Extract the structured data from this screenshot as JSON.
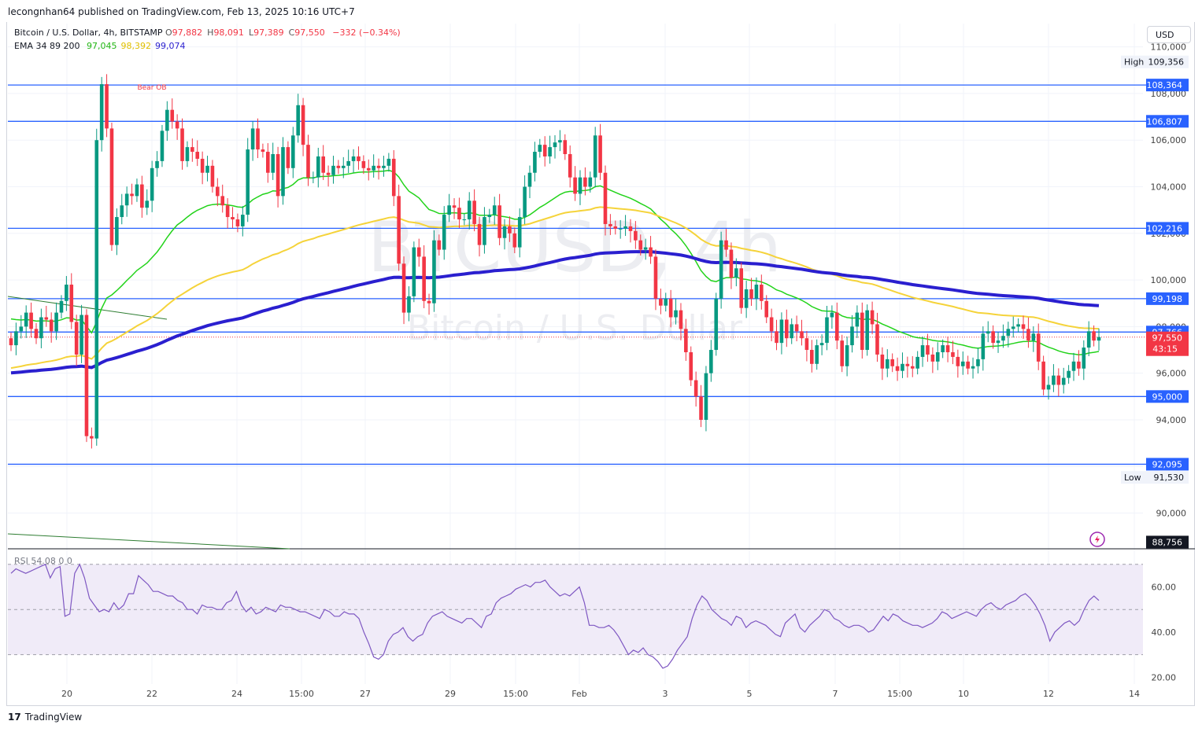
{
  "header": {
    "publisher": "lecongnhan64 published on TradingView.com, Feb 13, 2025 10:16 UTC+7",
    "symbol": "Bitcoin / U.S. Dollar, 4h, BITSTAMP",
    "ohlc": [
      {
        "key": "O",
        "value": "97,882"
      },
      {
        "key": "H",
        "value": "98,091"
      },
      {
        "key": "L",
        "value": "97,389"
      },
      {
        "key": "C",
        "value": "97,550"
      }
    ],
    "change": "−332 (−0.34%)",
    "ema_label": "EMA 34 89 200",
    "ema_values": [
      {
        "value": "97,045",
        "color": "#22b614"
      },
      {
        "value": "98,392",
        "color": "#e0c000"
      },
      {
        "value": "99,074",
        "color": "#2a1fcf"
      }
    ]
  },
  "currency": "USD",
  "watermark": {
    "symbol": "BTCUSD, 4h",
    "name": "Bitcoin / U.S. Dollar"
  },
  "footer": {
    "brand": "TradingView"
  },
  "chart_data": {
    "type": "candlestick",
    "timeframe": "4h",
    "x_ticks": [
      "20",
      "22",
      "24",
      "15:00",
      "27",
      "29",
      "15:00",
      "Feb",
      "3",
      "5",
      "7",
      "15:00",
      "10",
      "12",
      "14"
    ],
    "y_ticks": [
      "110,000",
      "108,000",
      "106,000",
      "104,000",
      "102,000",
      "100,000",
      "98,000",
      "96,000",
      "94,000",
      "92,000",
      "90,000"
    ],
    "y_tick_values": [
      110000,
      108000,
      106000,
      104000,
      102000,
      100000,
      98000,
      96000,
      94000,
      92000,
      90000
    ],
    "ylim": [
      88500,
      111000
    ],
    "horizontal_levels": [
      {
        "value": 108364,
        "label": "108,364"
      },
      {
        "value": 106807,
        "label": "106,807"
      },
      {
        "value": 102216,
        "label": "102,216"
      },
      {
        "value": 99198,
        "label": "99,198"
      },
      {
        "value": 97766,
        "label": "97,766"
      },
      {
        "value": 95000,
        "label": "95,000"
      },
      {
        "value": 92095,
        "label": "92,095"
      },
      {
        "value": 88756,
        "label": "88,756"
      }
    ],
    "high": {
      "label": "High",
      "value": 109356,
      "text": "109,356"
    },
    "low": {
      "label": "Low",
      "value": 91530,
      "text": "91,530"
    },
    "last_price": {
      "value": 97550,
      "text": "97,550",
      "countdown": "43:15"
    },
    "annotation": {
      "text": "Bear OB",
      "value": 108300
    },
    "candle_close_series": [
      97200,
      97800,
      98000,
      98600,
      97900,
      97500,
      98400,
      98300,
      97800,
      98600,
      99100,
      99800,
      98200,
      96800,
      98500,
      93300,
      93200,
      106000,
      108400,
      106500,
      101500,
      102700,
      103200,
      103700,
      103600,
      104100,
      103100,
      103400,
      104800,
      105100,
      106400,
      107300,
      106800,
      106500,
      105100,
      105700,
      105500,
      105200,
      104600,
      104900,
      104000,
      103600,
      103200,
      102700,
      102600,
      102300,
      102800,
      105600,
      106500,
      105600,
      105500,
      104600,
      105400,
      103600,
      105700,
      104800,
      106200,
      107500,
      105800,
      104400,
      104400,
      105300,
      104600,
      104500,
      104900,
      104800,
      104900,
      105100,
      105300,
      105100,
      104800,
      104700,
      104900,
      104800,
      104900,
      105200,
      103600,
      100700,
      98600,
      99300,
      101400,
      101000,
      99100,
      99000,
      101700,
      101300,
      102800,
      103200,
      103100,
      102600,
      102600,
      103400,
      102400,
      101500,
      102700,
      102800,
      103200,
      101800,
      102300,
      102000,
      101400,
      102700,
      104000,
      104600,
      105500,
      105800,
      105300,
      105700,
      105900,
      106000,
      105400,
      104400,
      103700,
      104400,
      104000,
      104400,
      106200,
      104600,
      102400,
      102300,
      102200,
      102200,
      102300,
      102100,
      101700,
      101300,
      101400,
      101000,
      99200,
      98900,
      99200,
      98400,
      98700,
      97900,
      96900,
      95700,
      95000,
      94000,
      96000,
      97000,
      99200,
      101700,
      101300,
      100100,
      100500,
      98800,
      99600,
      99200,
      99800,
      99100,
      98400,
      97800,
      97300,
      98300,
      97500,
      98100,
      97800,
      97500,
      97000,
      96400,
      97200,
      97300,
      98400,
      98600,
      97400,
      96300,
      97200,
      98000,
      98600,
      97000,
      98700,
      98100,
      96800,
      96200,
      96600,
      96300,
      96100,
      96400,
      96300,
      96200,
      96700,
      97200,
      96800,
      96500,
      96900,
      97200,
      96900,
      96700,
      96300,
      96500,
      96200,
      96300,
      96600,
      97700,
      97800,
      97300,
      97400,
      97600,
      97900,
      98000,
      98100,
      97900,
      97400,
      97700,
      96500,
      95300,
      95500,
      95900,
      95500,
      95800,
      96100,
      96500,
      96200,
      97100,
      97800,
      97400,
      97550
    ]
  },
  "rsi": {
    "label": "RSI",
    "value": "54.08",
    "extra": "0 0",
    "levels": [
      "60.00",
      "40.00",
      "20.00"
    ],
    "level_values": [
      60,
      40,
      20
    ],
    "band": [
      30,
      70
    ],
    "ylim": [
      17,
      72
    ],
    "series": [
      66,
      68,
      67,
      66,
      67,
      68,
      69,
      70,
      64,
      68,
      69,
      47,
      48,
      66,
      70,
      64,
      55,
      52,
      49,
      50,
      49,
      53,
      50,
      52,
      57,
      57,
      65,
      63,
      61,
      58,
      58,
      57,
      56,
      56,
      54,
      53,
      50,
      50,
      48,
      52,
      51,
      51,
      50,
      50,
      53,
      54,
      58,
      52,
      49,
      51,
      48,
      49,
      51,
      50,
      49,
      52,
      51,
      51,
      50,
      49,
      49,
      48,
      47,
      46,
      50,
      49,
      47,
      47,
      49,
      48,
      48,
      46,
      40,
      35,
      29,
      28,
      30,
      36,
      39,
      40,
      42,
      38,
      36,
      38,
      39,
      44,
      47,
      48,
      49,
      47,
      46,
      45,
      44,
      46,
      46,
      44,
      42,
      47,
      48,
      53,
      55,
      56,
      57,
      59,
      60,
      61,
      60,
      62,
      62,
      63,
      60,
      58,
      56,
      57,
      56,
      58,
      60,
      53,
      43,
      43,
      42,
      42,
      43,
      41,
      38,
      34,
      30,
      32,
      31,
      33,
      30,
      29,
      27,
      24,
      25,
      28,
      32,
      35,
      38,
      46,
      52,
      56,
      54,
      50,
      48,
      46,
      45,
      43,
      47,
      46,
      42,
      44,
      45,
      44,
      43,
      41,
      39,
      38,
      44,
      46,
      48,
      42,
      40,
      43,
      45,
      47,
      50,
      49,
      46,
      45,
      43,
      42,
      43,
      43,
      42,
      40,
      41,
      44,
      47,
      45,
      48,
      47,
      45,
      44,
      43,
      43,
      42,
      43,
      44,
      46,
      49,
      48,
      46,
      47,
      48,
      49,
      48,
      47,
      50,
      52,
      53,
      51,
      50,
      52,
      53,
      54,
      56,
      57,
      55,
      52,
      48,
      43,
      36,
      40,
      42,
      44,
      45,
      43,
      45,
      50,
      54,
      56,
      54
    ]
  },
  "colors": {
    "up": "#089981",
    "down": "#f23645",
    "level_line": "#2962ff",
    "ema34": "#22d31a",
    "ema89": "#f5d33a",
    "ema200": "#2a1fcf",
    "rsi_line": "#7e57c2",
    "rsi_band": "#f0ebf8",
    "countdown_tag": "#f23645"
  }
}
